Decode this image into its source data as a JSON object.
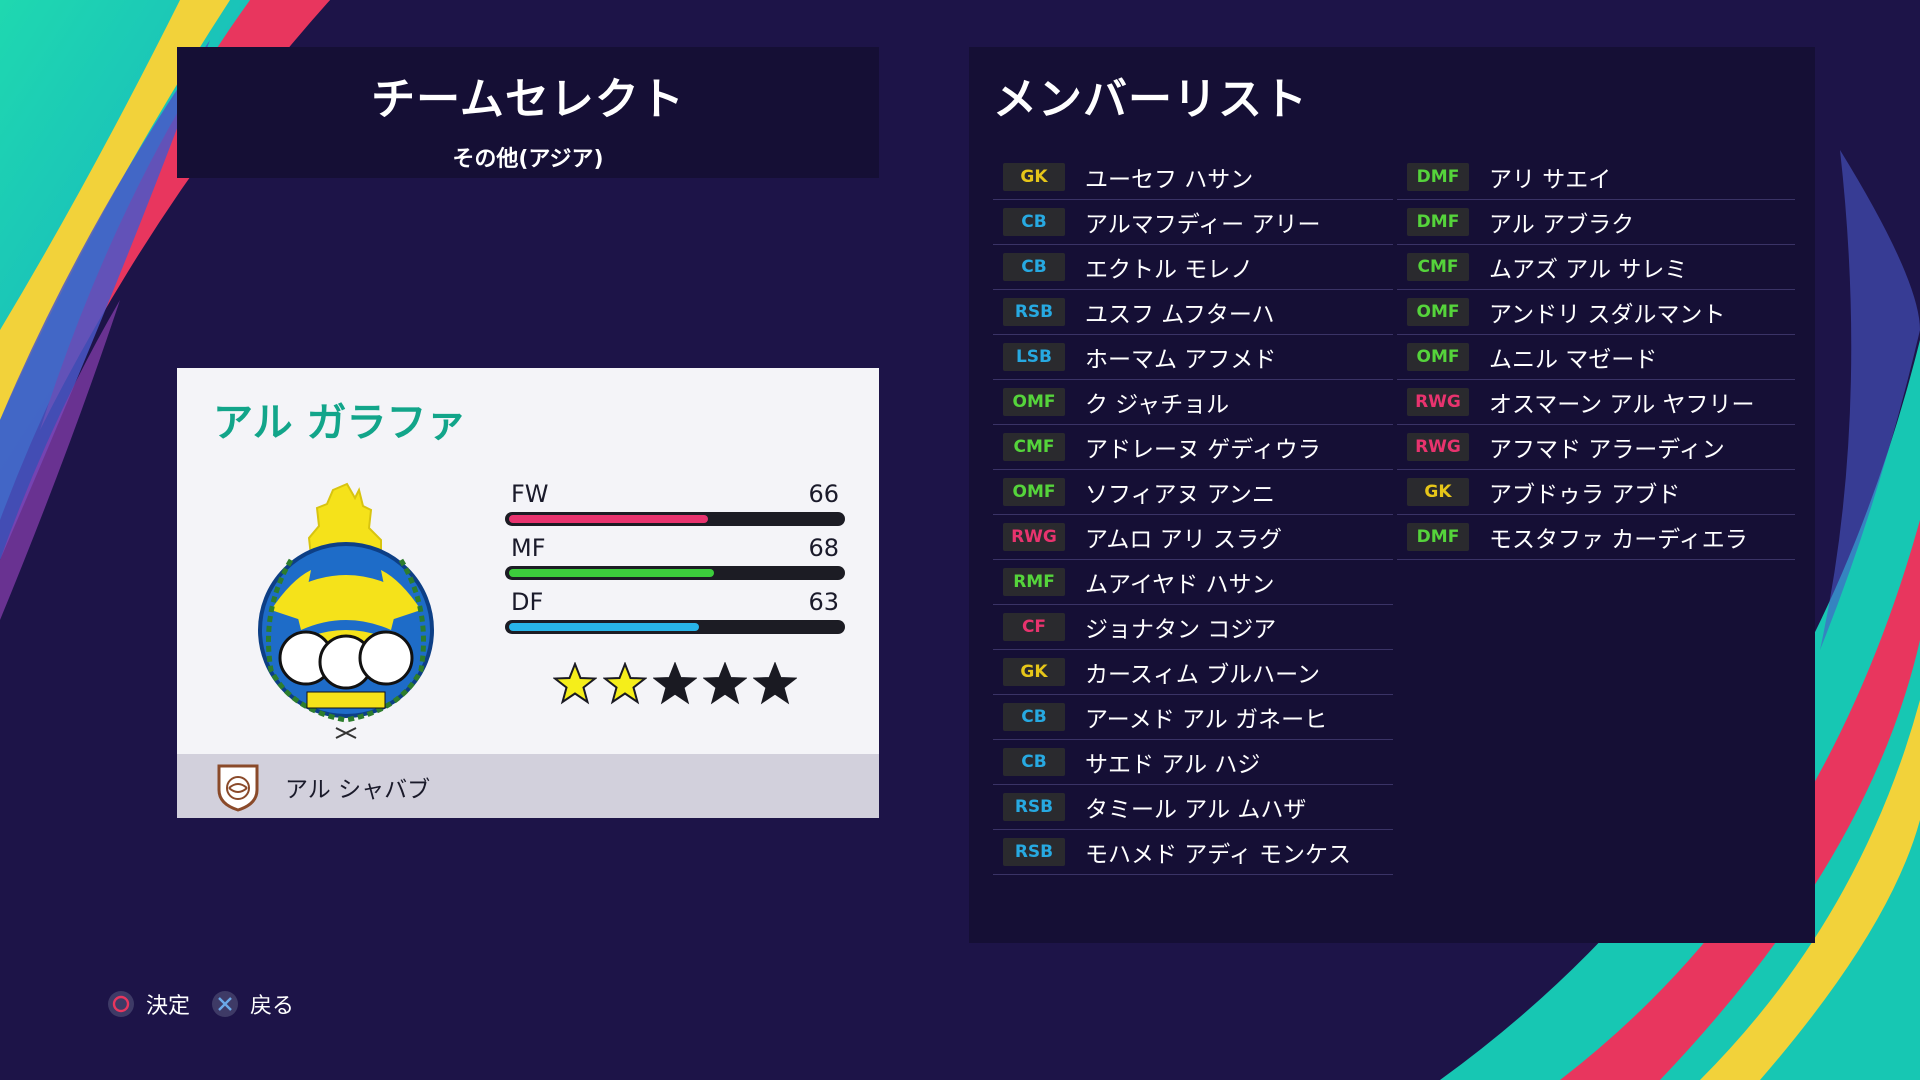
{
  "team_select": {
    "title": "チームセレクト",
    "subtitle": "その他(アジア)"
  },
  "team_card": {
    "team_name": "アル ガラファ",
    "stats": [
      {
        "label": "FW",
        "value": 66,
        "color": "#e8336e"
      },
      {
        "label": "MF",
        "value": 68,
        "color": "#3ccc3c"
      },
      {
        "label": "DF",
        "value": 63,
        "color": "#28b4e8"
      }
    ],
    "star_rating": 2,
    "star_max": 5,
    "rival_team": "アル シャバブ"
  },
  "member_list": {
    "title": "メンバーリスト",
    "position_colors": {
      "GK": "#e6c619",
      "DF": "#27a9e1",
      "MF": "#55d43b",
      "FW": "#e8336e"
    },
    "left": [
      {
        "pos": "GK",
        "group": "GK",
        "name": "ユーセフ ハサン"
      },
      {
        "pos": "CB",
        "group": "DF",
        "name": "アルマフディー アリー"
      },
      {
        "pos": "CB",
        "group": "DF",
        "name": "エクトル モレノ"
      },
      {
        "pos": "RSB",
        "group": "DF",
        "name": "ユスフ ムフターハ"
      },
      {
        "pos": "LSB",
        "group": "DF",
        "name": "ホーマム アフメド"
      },
      {
        "pos": "OMF",
        "group": "MF",
        "name": "ク ジャチョル"
      },
      {
        "pos": "CMF",
        "group": "MF",
        "name": "アドレーヌ ゲディウラ"
      },
      {
        "pos": "OMF",
        "group": "MF",
        "name": "ソフィアヌ アンニ"
      },
      {
        "pos": "RWG",
        "group": "FW",
        "name": "アムロ アリ スラグ"
      },
      {
        "pos": "RMF",
        "group": "MF",
        "name": "ムアイヤド ハサン"
      },
      {
        "pos": "CF",
        "group": "FW",
        "name": "ジョナタン コジア"
      },
      {
        "pos": "GK",
        "group": "GK",
        "name": "カースィム ブルハーン"
      },
      {
        "pos": "CB",
        "group": "DF",
        "name": "アーメド アル ガネーヒ"
      },
      {
        "pos": "CB",
        "group": "DF",
        "name": "サエド アル ハジ"
      },
      {
        "pos": "RSB",
        "group": "DF",
        "name": "タミール アル ムハザ"
      },
      {
        "pos": "RSB",
        "group": "DF",
        "name": "モハメド アディ モンケス"
      }
    ],
    "right": [
      {
        "pos": "DMF",
        "group": "MF",
        "name": "アリ サエイ"
      },
      {
        "pos": "DMF",
        "group": "MF",
        "name": "アル アブラク"
      },
      {
        "pos": "CMF",
        "group": "MF",
        "name": "ムアズ アル サレミ"
      },
      {
        "pos": "OMF",
        "group": "MF",
        "name": "アンドリ スダルマント"
      },
      {
        "pos": "OMF",
        "group": "MF",
        "name": "ムニル マゼード"
      },
      {
        "pos": "RWG",
        "group": "FW",
        "name": "オスマーン アル ヤフリー"
      },
      {
        "pos": "RWG",
        "group": "FW",
        "name": "アフマド アラーディン"
      },
      {
        "pos": "GK",
        "group": "GK",
        "name": "アブドゥラ アブド"
      },
      {
        "pos": "DMF",
        "group": "MF",
        "name": "モスタファ カーディエラ"
      }
    ]
  },
  "footer": {
    "confirm_icon": "circle-button-icon",
    "confirm_label": "決定",
    "back_icon": "cross-button-icon",
    "back_label": "戻る"
  }
}
